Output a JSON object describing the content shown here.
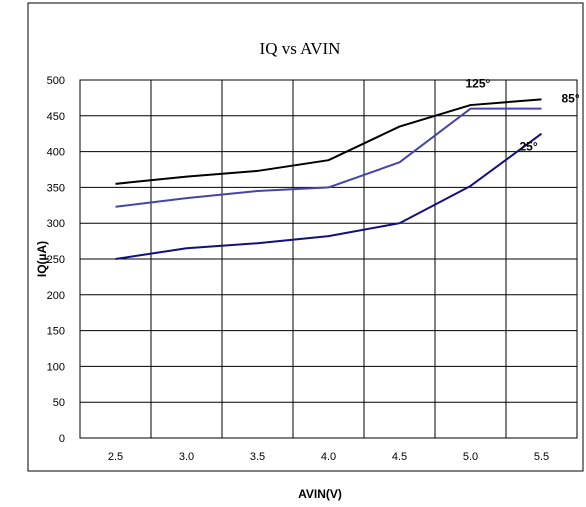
{
  "chart_data": {
    "type": "line",
    "title": "IQ vs AVIN",
    "xlabel": "AVIN(V)",
    "ylabel": "IQ(µA)",
    "x": [
      2.5,
      3.0,
      3.5,
      4.0,
      4.5,
      5.0,
      5.5
    ],
    "x_tick_labels": [
      "2.5",
      "3.0",
      "3.5",
      "4.0",
      "4.5",
      "5.0",
      "5.5"
    ],
    "xlim": [
      2.25,
      5.75
    ],
    "ylim": [
      0,
      500
    ],
    "y_ticks": [
      0,
      50,
      100,
      150,
      200,
      250,
      300,
      350,
      400,
      450,
      500
    ],
    "y_tick_labels": [
      "0",
      "50",
      "100",
      "150",
      "200",
      "250",
      "300",
      "350",
      "400",
      "450",
      "500"
    ],
    "grid": true,
    "series": [
      {
        "name": "125°",
        "color": "#000000",
        "values": [
          355,
          365,
          373,
          388,
          435,
          465,
          473
        ]
      },
      {
        "name": "85°",
        "color": "#4444aa",
        "values": [
          323,
          335,
          345,
          350,
          385,
          460,
          460
        ]
      },
      {
        "name": "25°",
        "color": "#101080",
        "values": [
          250,
          265,
          272,
          282,
          300,
          352,
          425
        ]
      }
    ]
  }
}
